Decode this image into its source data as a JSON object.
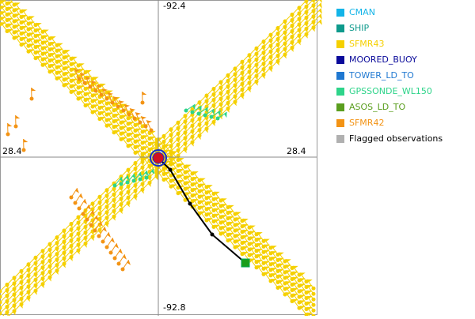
{
  "plot": {
    "labels": {
      "top": "-92.4",
      "bottom": "-92.8",
      "left": "28.4",
      "right": "28.4"
    }
  },
  "legend": [
    {
      "name": "CMAN",
      "color": "#12b4e8"
    },
    {
      "name": "SHIP",
      "color": "#0e9a8c"
    },
    {
      "name": "SFMR43",
      "color": "#f5d000"
    },
    {
      "name": "MOORED_BUOY",
      "color": "#0a0a9a"
    },
    {
      "name": "TOWER_LD_TO",
      "color": "#1f78d1"
    },
    {
      "name": "GPSSONDE_WL150",
      "color": "#2ed48a"
    },
    {
      "name": "ASOS_LD_TO",
      "color": "#5a9e1e"
    },
    {
      "name": "SFMR42",
      "color": "#f39314"
    },
    {
      "name": "Flagged observations",
      "color": "#b0b0b0"
    }
  ]
}
